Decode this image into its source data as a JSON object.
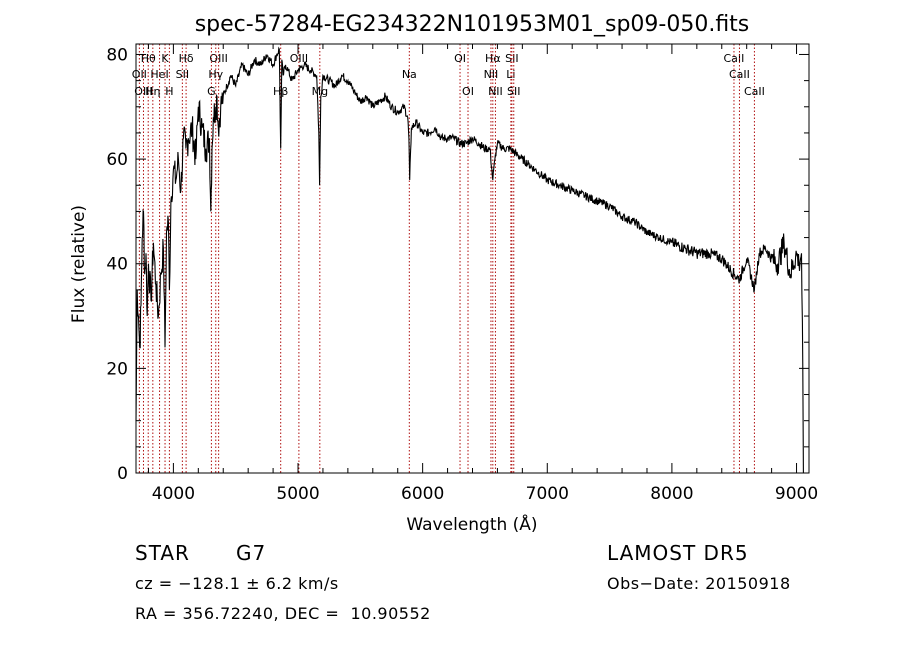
{
  "chart_data": {
    "type": "line",
    "title": "spec-57284-EG234322N101953M01_sp09-050.fits",
    "xlabel": "Wavelength (Å)",
    "ylabel": "Flux (relative)",
    "xlim": [
      3700,
      9100
    ],
    "ylim": [
      0,
      82
    ],
    "x_ticks": [
      4000,
      5000,
      6000,
      7000,
      8000,
      9000
    ],
    "y_ticks": [
      0,
      20,
      40,
      60,
      80
    ],
    "grid": false,
    "series": [
      {
        "x": [
          3700,
          3710,
          3720,
          3730,
          3740,
          3750,
          3760,
          3770,
          3780,
          3790,
          3800,
          3820,
          3840,
          3860,
          3880,
          3900,
          3920,
          3933,
          3945,
          3960,
          3968,
          3980,
          4000,
          4020,
          4040,
          4060,
          4080,
          4100,
          4120,
          4150,
          4180,
          4200,
          4230,
          4260,
          4290,
          4300,
          4310,
          4320,
          4340,
          4350,
          4360,
          4380,
          4400,
          4430,
          4460,
          4500,
          4550,
          4600,
          4650,
          4700,
          4750,
          4800,
          4830,
          4850,
          4861,
          4870,
          4880,
          4900,
          4920,
          4950,
          5000,
          5050,
          5100,
          5150,
          5167,
          5173,
          5183,
          5200,
          5250,
          5300,
          5350,
          5400,
          5450,
          5500,
          5550,
          5600,
          5650,
          5700,
          5750,
          5800,
          5850,
          5880,
          5890,
          5896,
          5910,
          5950,
          6000,
          6050,
          6100,
          6150,
          6200,
          6250,
          6300,
          6350,
          6400,
          6450,
          6500,
          6540,
          6563,
          6580,
          6600,
          6650,
          6700,
          6750,
          6800,
          6850,
          6900,
          6950,
          7000,
          7100,
          7200,
          7300,
          7400,
          7500,
          7600,
          7700,
          7800,
          7900,
          8000,
          8100,
          8200,
          8300,
          8400,
          8498,
          8542,
          8600,
          8662,
          8700,
          8750,
          8800,
          8850,
          8900,
          8950,
          9000,
          9020,
          9040,
          9050,
          9055
        ],
        "y": [
          10,
          35,
          30,
          24,
          32,
          45,
          50,
          38,
          42,
          30,
          40,
          33,
          44,
          36,
          30,
          38,
          43,
          24,
          46,
          48,
          35,
          52,
          58,
          56,
          60,
          54,
          64,
          62,
          64,
          66,
          60,
          70,
          66,
          62,
          64,
          50,
          62,
          68,
          70,
          72,
          66,
          70,
          72,
          74,
          76,
          74,
          78,
          76,
          79,
          78,
          80,
          78,
          80,
          81,
          62,
          79,
          76,
          78,
          77,
          75,
          77,
          78,
          77,
          76,
          65,
          55,
          72,
          76,
          75,
          74,
          76,
          75,
          73,
          71,
          72,
          70,
          71,
          72,
          70,
          69,
          70,
          68,
          64,
          56,
          66,
          67,
          65,
          65,
          66,
          64,
          64,
          64,
          63,
          63,
          64,
          63,
          62,
          62,
          56,
          60,
          63,
          62,
          62,
          61,
          60,
          59,
          58,
          57,
          56,
          55,
          54,
          53,
          52,
          51,
          49,
          48,
          46,
          45,
          44,
          43,
          42,
          42,
          41,
          38,
          37,
          41,
          35,
          42,
          43,
          41,
          40,
          44,
          38,
          42,
          40,
          42,
          20,
          0
        ]
      }
    ],
    "lines": [
      {
        "label": "Hθ",
        "x": 3798,
        "row": 1
      },
      {
        "label": "K",
        "x": 3933,
        "row": 1
      },
      {
        "label": "Hδ",
        "x": 4102,
        "row": 1
      },
      {
        "label": "OIII",
        "x": 4363,
        "row": 1
      },
      {
        "label": "OIII",
        "x": 5007,
        "row": 1
      },
      {
        "label": "OI",
        "x": 6300,
        "row": 1
      },
      {
        "label": "Hα",
        "x": 6563,
        "row": 1
      },
      {
        "label": "SII",
        "x": 6716,
        "row": 1
      },
      {
        "label": "CaII",
        "x": 8498,
        "row": 1
      },
      {
        "label": "OII",
        "x": 3727,
        "row": 2
      },
      {
        "label": "HeI",
        "x": 3889,
        "row": 2
      },
      {
        "label": "SII",
        "x": 4072,
        "row": 2
      },
      {
        "label": "Hγ",
        "x": 4340,
        "row": 2
      },
      {
        "label": "Na",
        "x": 5893,
        "row": 2
      },
      {
        "label": "NII",
        "x": 6548,
        "row": 2
      },
      {
        "label": "Li",
        "x": 6708,
        "row": 2
      },
      {
        "label": "CaII",
        "x": 8542,
        "row": 2
      },
      {
        "label": "OIII",
        "x": 3760,
        "row": 3
      },
      {
        "label": "Hη",
        "x": 3835,
        "row": 3
      },
      {
        "label": "H",
        "x": 3968,
        "row": 3
      },
      {
        "label": "G",
        "x": 4305,
        "row": 3
      },
      {
        "label": "Hβ",
        "x": 4861,
        "row": 3
      },
      {
        "label": "Mg",
        "x": 5175,
        "row": 3
      },
      {
        "label": "OI",
        "x": 6364,
        "row": 3
      },
      {
        "label": "NII",
        "x": 6584,
        "row": 3
      },
      {
        "label": "SII",
        "x": 6731,
        "row": 3
      },
      {
        "label": "CaII",
        "x": 8662,
        "row": 3
      }
    ]
  },
  "info": {
    "object_class": "STAR",
    "subclass": "G7",
    "survey": "LAMOST DR5",
    "redshift_line": "cz = −128.1 ± 6.2 km/s",
    "obs_date": "Obs−Date: 20150918",
    "coords": "RA = 356.72240, DEC =  10.90552"
  }
}
